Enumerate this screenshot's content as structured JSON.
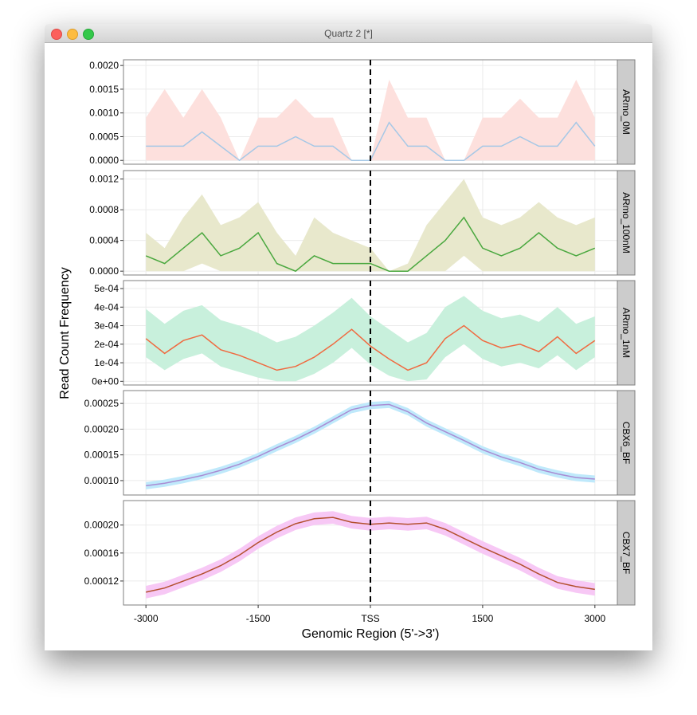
{
  "window": {
    "title": "Quartz 2 [*]"
  },
  "chart_data": {
    "type": "line",
    "xlabel": "Genomic Region (5'->3')",
    "ylabel": "Read Count Frequency",
    "xlim": [
      -3300,
      3300
    ],
    "xticks": [
      -3000,
      -1500,
      {
        "value": 0,
        "label": "TSS"
      },
      1500,
      3000
    ],
    "vline": 0,
    "grid": true,
    "x": [
      -3000,
      -2750,
      -2500,
      -2250,
      -2000,
      -1750,
      -1500,
      -1250,
      -1000,
      -750,
      -500,
      -250,
      0,
      250,
      500,
      750,
      1000,
      1250,
      1500,
      1750,
      2000,
      2250,
      2500,
      2750,
      3000
    ],
    "panels": [
      {
        "title": "ARmo_0M",
        "ylim": [
          -8e-05,
          0.00212
        ],
        "yticks": [
          {
            "value": 0,
            "label": "0.0000"
          },
          {
            "value": 0.0005,
            "label": "0.0005"
          },
          {
            "value": 0.001,
            "label": "0.0010"
          },
          {
            "value": 0.0015,
            "label": "0.0015"
          },
          {
            "value": 0.002,
            "label": "0.0020"
          }
        ],
        "series": [
          {
            "color": "#a6c8e6",
            "fill": "#fde0dd",
            "values": [
              0.0003,
              0.0003,
              0.0003,
              0.0006,
              0.0003,
              0,
              0.0003,
              0.0003,
              0.0005,
              0.0003,
              0.0003,
              0,
              0,
              0.0008,
              0.0003,
              0.0003,
              0,
              0,
              0.0003,
              0.0003,
              0.0005,
              0.0003,
              0.0003,
              0.0008,
              0.0003
            ],
            "upper": [
              0.0009,
              0.0015,
              0.0009,
              0.0015,
              0.0009,
              0,
              0.0009,
              0.0009,
              0.0013,
              0.0009,
              0.0009,
              0,
              0,
              0.0017,
              0.0009,
              0.0009,
              0,
              0,
              0.0009,
              0.0009,
              0.0013,
              0.0009,
              0.0009,
              0.0017,
              0.0009
            ],
            "lower": [
              0,
              0,
              0,
              0,
              0,
              0,
              0,
              0,
              0,
              0,
              0,
              0,
              0,
              0,
              0,
              0,
              0,
              0,
              0,
              0,
              0,
              0,
              0,
              0,
              0
            ]
          }
        ]
      },
      {
        "title": "ARmo_100nM",
        "ylim": [
          -5e-05,
          0.00131
        ],
        "yticks": [
          {
            "value": 0,
            "label": "0.0000"
          },
          0.0004,
          0.0008,
          0.0012
        ],
        "series": [
          {
            "color": "#4aa83f",
            "fill": "#e8e8cc",
            "values": [
              0.0002,
              0.0001,
              0.0003,
              0.0005,
              0.0002,
              0.0003,
              0.0005,
              0.0001,
              0,
              0.0002,
              0.0001,
              0.0001,
              0.0001,
              0,
              0,
              0.0002,
              0.0004,
              0.0007,
              0.0003,
              0.0002,
              0.0003,
              0.0005,
              0.0003,
              0.0002,
              0.0003
            ],
            "upper": [
              0.0005,
              0.0003,
              0.0007,
              0.001,
              0.0006,
              0.0007,
              0.0009,
              0.0005,
              0.0002,
              0.0007,
              0.0005,
              0.0004,
              0.0003,
              0,
              0.0001,
              0.0006,
              0.0009,
              0.0012,
              0.0007,
              0.0006,
              0.0007,
              0.0009,
              0.0007,
              0.0006,
              0.0007
            ],
            "lower": [
              0,
              0,
              0,
              0.0001,
              0,
              0,
              0,
              0,
              0,
              0,
              0,
              0,
              0,
              0,
              0,
              0,
              0,
              0.0002,
              0,
              0,
              0,
              0,
              0,
              0,
              0
            ]
          }
        ]
      },
      {
        "title": "ARmo_1nM",
        "ylim": [
          -2e-05,
          0.000543
        ],
        "yticks": [
          {
            "value": 0,
            "label": "0e+00"
          },
          {
            "value": 0.0001,
            "label": "1e-04"
          },
          {
            "value": 0.0002,
            "label": "2e-04"
          },
          {
            "value": 0.0003,
            "label": "3e-04"
          },
          {
            "value": 0.0004,
            "label": "4e-04"
          },
          {
            "value": 0.0005,
            "label": "5e-04"
          }
        ],
        "series": [
          {
            "color": "#f06a40",
            "fill": "#c8f0dc",
            "values": [
              0.00023,
              0.00015,
              0.00022,
              0.00025,
              0.00017,
              0.00014,
              0.0001,
              6e-05,
              8e-05,
              0.00013,
              0.0002,
              0.00028,
              0.00019,
              0.00012,
              6e-05,
              0.0001,
              0.00023,
              0.0003,
              0.00022,
              0.00018,
              0.0002,
              0.00016,
              0.00024,
              0.00015,
              0.00022
            ],
            "upper": [
              0.00039,
              0.00031,
              0.00038,
              0.00041,
              0.00033,
              0.0003,
              0.00026,
              0.00021,
              0.00024,
              0.0003,
              0.00037,
              0.00045,
              0.00035,
              0.00028,
              0.00021,
              0.00026,
              0.0004,
              0.00046,
              0.00038,
              0.00034,
              0.00036,
              0.00032,
              0.0004,
              0.00031,
              0.00035
            ],
            "lower": [
              0.00013,
              6e-05,
              0.00012,
              0.00015,
              8e-05,
              5e-05,
              2e-05,
              0,
              0,
              4e-05,
              0.0001,
              0.00018,
              9e-05,
              3e-05,
              0,
              1e-05,
              0.00013,
              0.0002,
              0.00012,
              8e-05,
              0.0001,
              7e-05,
              0.00014,
              6e-05,
              0.00013
            ]
          }
        ]
      },
      {
        "title": "CBX6_BF",
        "ylim": [
          7.2e-05,
          0.000275
        ],
        "yticks": [
          {
            "value": 0.0001,
            "label": "0.00010"
          },
          {
            "value": 0.00015,
            "label": "0.00015"
          },
          {
            "value": 0.0002,
            "label": "0.00020"
          },
          {
            "value": 0.00025,
            "label": "0.00025"
          }
        ],
        "series": [
          {
            "color": "#a98bd3",
            "fill": "#bfe9fb",
            "values": [
              9e-05,
              9.5e-05,
              0.000102,
              0.00011,
              0.00012,
              0.000132,
              0.000147,
              0.000164,
              0.00018,
              0.000198,
              0.000218,
              0.000238,
              0.000246,
              0.000248,
              0.000234,
              0.000212,
              0.000195,
              0.000178,
              0.00016,
              0.000146,
              0.000135,
              0.000122,
              0.000113,
              0.000106,
              0.000103
            ],
            "upper": [
              9.7e-05,
              0.000102,
              0.000109,
              0.000117,
              0.000127,
              0.000139,
              0.000154,
              0.000171,
              0.000187,
              0.000205,
              0.000225,
              0.000245,
              0.000253,
              0.000255,
              0.000241,
              0.000219,
              0.000202,
              0.000185,
              0.000167,
              0.000153,
              0.000142,
              0.000129,
              0.00012,
              0.000113,
              0.00011
            ],
            "lower": [
              8.3e-05,
              8.8e-05,
              9.5e-05,
              0.000103,
              0.000113,
              0.000125,
              0.00014,
              0.000157,
              0.000173,
              0.000191,
              0.000211,
              0.000231,
              0.000239,
              0.000241,
              0.000227,
              0.000205,
              0.000188,
              0.000171,
              0.000153,
              0.000139,
              0.000128,
              0.000115,
              0.000106,
              9.9e-05,
              9.6e-05
            ]
          }
        ]
      },
      {
        "title": "CBX7_BF",
        "ylim": [
          8.57e-05,
          0.000235
        ],
        "yticks": [
          {
            "value": 0.00012,
            "label": "0.00012"
          },
          {
            "value": 0.00016,
            "label": "0.00016"
          },
          {
            "value": 0.0002,
            "label": "0.00020"
          }
        ],
        "series": [
          {
            "color": "#b3502e",
            "fill": "#f7c8f5",
            "values": [
              0.000104,
              0.00011,
              0.00012,
              0.00013,
              0.000142,
              0.000157,
              0.000175,
              0.00019,
              0.000202,
              0.000209,
              0.000211,
              0.000204,
              0.000201,
              0.000203,
              0.000201,
              0.000203,
              0.000194,
              0.000181,
              0.000168,
              0.000156,
              0.000144,
              0.00013,
              0.000118,
              0.000112,
              0.000108
            ],
            "upper": [
              0.000113,
              0.000119,
              0.000129,
              0.000139,
              0.000151,
              0.000166,
              0.000184,
              0.000199,
              0.000211,
              0.000218,
              0.00022,
              0.000213,
              0.00021,
              0.000212,
              0.00021,
              0.000212,
              0.000203,
              0.00019,
              0.000177,
              0.000165,
              0.000153,
              0.000139,
              0.000127,
              0.000121,
              0.000117
            ],
            "lower": [
              9.5e-05,
              0.000101,
              0.000111,
              0.000121,
              0.000133,
              0.000148,
              0.000166,
              0.000181,
              0.000193,
              0.0002,
              0.000202,
              0.000195,
              0.000192,
              0.000194,
              0.000192,
              0.000194,
              0.000185,
              0.000172,
              0.000159,
              0.000147,
              0.000135,
              0.000121,
              0.000109,
              0.000103,
              9.9e-05
            ]
          }
        ]
      }
    ]
  }
}
